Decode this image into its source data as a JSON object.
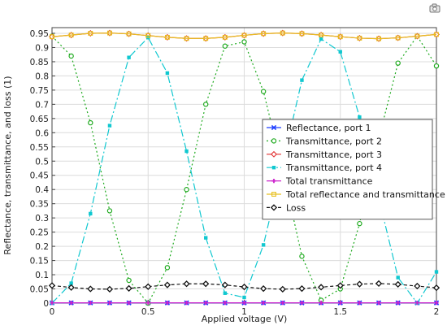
{
  "chart_data": {
    "type": "line",
    "xlabel": "Applied voltage (V)",
    "ylabel": "Reflectance, transmittance, and loss (1)",
    "xlim": [
      0,
      2
    ],
    "ylim": [
      0,
      0.97
    ],
    "x_ticks": [
      "0",
      "0.5",
      "1",
      "1.5",
      "2"
    ],
    "x_tick_values": [
      0,
      0.5,
      1,
      1.5,
      2
    ],
    "y_ticks": [
      "0",
      "0.05",
      "0.1",
      "0.15",
      "0.2",
      "0.25",
      "0.3",
      "0.35",
      "0.4",
      "0.45",
      "0.5",
      "0.55",
      "0.6",
      "0.65",
      "0.7",
      "0.75",
      "0.8",
      "0.85",
      "0.9",
      "0.95"
    ],
    "y_tick_values": [
      0,
      0.05,
      0.1,
      0.15,
      0.2,
      0.25,
      0.3,
      0.35,
      0.4,
      0.45,
      0.5,
      0.55,
      0.6,
      0.65,
      0.7,
      0.75,
      0.8,
      0.85,
      0.9,
      0.95
    ],
    "grid": true,
    "legend_position": "center-right",
    "x": [
      0,
      0.1,
      0.2,
      0.3,
      0.4,
      0.5,
      0.6,
      0.7,
      0.8,
      0.9,
      1.0,
      1.1,
      1.2,
      1.3,
      1.4,
      1.5,
      1.6,
      1.7,
      1.8,
      1.9,
      2.0
    ],
    "series": [
      {
        "name": "Reflectance, port 1",
        "color": "#1f3fff",
        "marker": "x",
        "dash": "",
        "values": [
          0.001,
          0.001,
          0.001,
          0.001,
          0.001,
          0.001,
          0.001,
          0.001,
          0.001,
          0.001,
          0.001,
          0.001,
          0.001,
          0.001,
          0.001,
          0.001,
          0.001,
          0.001,
          0.001,
          0.001,
          0.001
        ]
      },
      {
        "name": "Transmittance, port 2",
        "color": "#1faa1f",
        "marker": "circle",
        "dash": "2,3",
        "values": [
          0.94,
          0.87,
          0.635,
          0.325,
          0.08,
          0.0,
          0.125,
          0.4,
          0.7,
          0.905,
          0.92,
          0.745,
          0.47,
          0.165,
          0.01,
          0.05,
          0.28,
          0.58,
          0.845,
          0.94,
          0.835
        ]
      },
      {
        "name": "Transmittance, port 3",
        "color": "#e23030",
        "marker": "diamond",
        "dash": "",
        "values": [
          0.938,
          0.944,
          0.95,
          0.951,
          0.948,
          0.942,
          0.936,
          0.932,
          0.932,
          0.936,
          0.943,
          0.949,
          0.951,
          0.949,
          0.944,
          0.938,
          0.933,
          0.931,
          0.934,
          0.94,
          0.946
        ]
      },
      {
        "name": "Transmittance, port 4",
        "color": "#10c8d0",
        "marker": "square",
        "dash": "9,3,2,3",
        "values": [
          0.0,
          0.07,
          0.315,
          0.625,
          0.865,
          0.935,
          0.81,
          0.535,
          0.23,
          0.035,
          0.02,
          0.205,
          0.49,
          0.785,
          0.93,
          0.885,
          0.655,
          0.37,
          0.09,
          0.0,
          0.11
        ]
      },
      {
        "name": "Total transmittance",
        "color": "#cc22cc",
        "marker": "plus",
        "dash": "",
        "values": [
          0.001,
          0.001,
          0.001,
          0.001,
          0.001,
          0.001,
          0.001,
          0.001,
          0.001,
          0.001,
          0.001,
          0.001,
          0.001,
          0.001,
          0.001,
          0.001,
          0.001,
          0.001,
          0.001,
          0.001,
          0.001
        ]
      },
      {
        "name": "Total reflectance and transmittance",
        "color": "#e8c020",
        "marker": "square-open",
        "dash": "",
        "values": [
          0.938,
          0.944,
          0.95,
          0.951,
          0.948,
          0.942,
          0.936,
          0.932,
          0.932,
          0.936,
          0.943,
          0.949,
          0.951,
          0.949,
          0.944,
          0.938,
          0.933,
          0.931,
          0.934,
          0.94,
          0.946
        ]
      },
      {
        "name": "Loss",
        "color": "#111111",
        "marker": "diamond-open",
        "dash": "4,3",
        "values": [
          0.062,
          0.055,
          0.05,
          0.049,
          0.052,
          0.058,
          0.064,
          0.068,
          0.068,
          0.064,
          0.057,
          0.051,
          0.049,
          0.051,
          0.056,
          0.062,
          0.067,
          0.069,
          0.066,
          0.06,
          0.054
        ]
      }
    ]
  },
  "toolbar": {
    "icon": "camera-icon"
  }
}
